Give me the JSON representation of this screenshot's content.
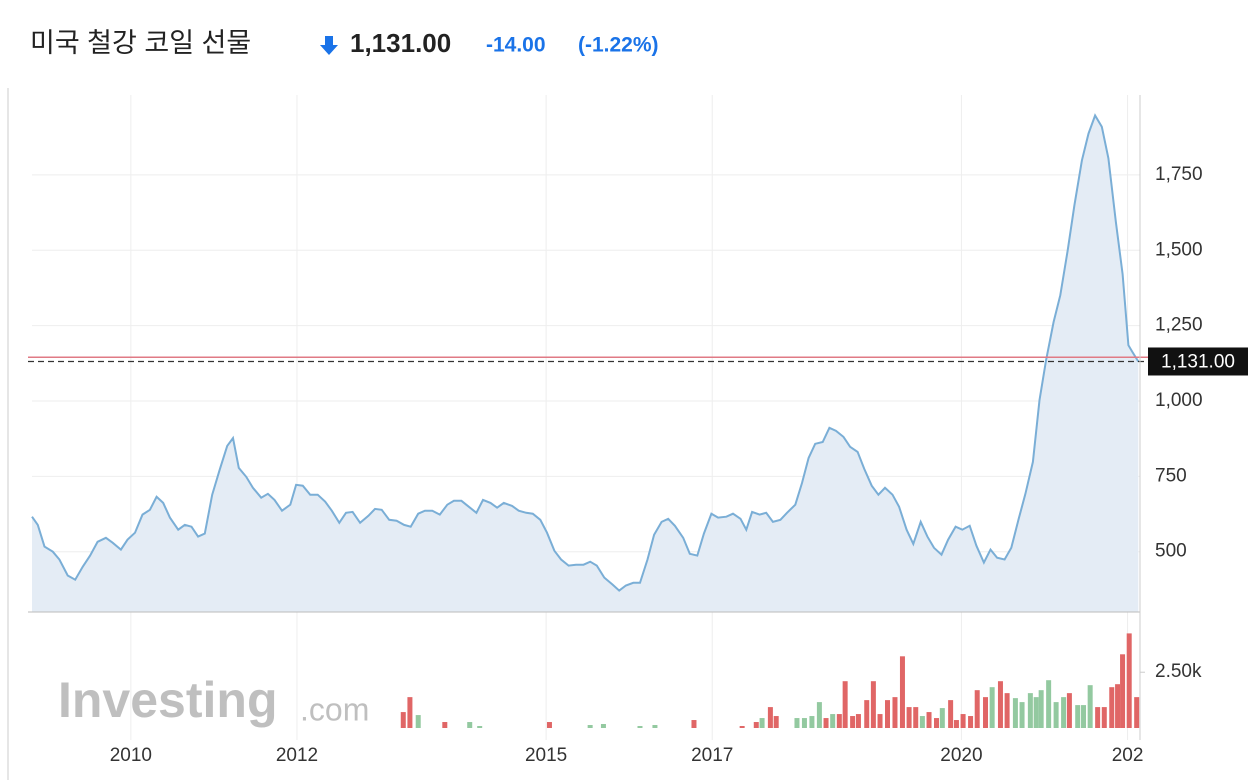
{
  "chart_data": {
    "type": "area",
    "title": "미국 철강 코일 선물",
    "price": "1,131.00",
    "change": "-14.00",
    "change_pct": "(-1.22%)",
    "watermark": {
      "brand": "Investing",
      "suffix": ".com"
    },
    "color": "#7aaed6",
    "fill": "#e4ecf5",
    "x": [
      2008.81,
      2008.88,
      2008.96,
      2009.06,
      2009.14,
      2009.24,
      2009.33,
      2009.42,
      2009.51,
      2009.6,
      2009.7,
      2009.78,
      2009.88,
      2009.96,
      2010.05,
      2010.14,
      2010.23,
      2010.31,
      2010.39,
      2010.47,
      2010.57,
      2010.65,
      2010.73,
      2010.81,
      2010.89,
      2010.98,
      2011.07,
      2011.16,
      2011.23,
      2011.3,
      2011.39,
      2011.47,
      2011.57,
      2011.65,
      2011.73,
      2011.82,
      2011.92,
      2011.99,
      2012.07,
      2012.16,
      2012.25,
      2012.34,
      2012.42,
      2012.51,
      2012.59,
      2012.67,
      2012.76,
      2012.86,
      2012.94,
      2013.02,
      2013.11,
      2013.2,
      2013.29,
      2013.37,
      2013.46,
      2013.54,
      2013.63,
      2013.72,
      2013.81,
      2013.89,
      2013.98,
      2014.07,
      2014.16,
      2014.24,
      2014.33,
      2014.41,
      2014.49,
      2014.59,
      2014.67,
      2014.76,
      2014.84,
      2014.93,
      2015.01,
      2015.1,
      2015.18,
      2015.27,
      2015.36,
      2015.45,
      2015.53,
      2015.61,
      2015.7,
      2015.8,
      2015.88,
      2015.96,
      2016.05,
      2016.13,
      2016.22,
      2016.3,
      2016.39,
      2016.47,
      2016.55,
      2016.65,
      2016.73,
      2016.82,
      2016.9,
      2016.99,
      2017.07,
      2017.17,
      2017.25,
      2017.34,
      2017.41,
      2017.48,
      2017.57,
      2017.65,
      2017.73,
      2017.82,
      2017.9,
      2018.0,
      2018.08,
      2018.16,
      2018.24,
      2018.33,
      2018.41,
      2018.49,
      2018.58,
      2018.66,
      2018.75,
      2018.83,
      2018.92,
      2019.0,
      2019.08,
      2019.17,
      2019.25,
      2019.34,
      2019.42,
      2019.51,
      2019.59,
      2019.67,
      2019.76,
      2019.84,
      2019.93,
      2020.01,
      2020.1,
      2020.18,
      2020.27,
      2020.35,
      2020.43,
      2020.52,
      2020.6,
      2020.69,
      2020.77,
      2020.86,
      2020.94,
      2021.02,
      2021.11,
      2021.19,
      2021.28,
      2021.36,
      2021.45,
      2021.53,
      2021.61,
      2021.69,
      2021.77,
      2021.86,
      2021.94,
      2022.01,
      2022.06,
      2022.13
    ],
    "values": [
      616,
      589,
      517,
      500,
      474,
      421,
      407,
      450,
      487,
      533,
      546,
      530,
      507,
      540,
      563,
      623,
      639,
      682,
      662,
      613,
      573,
      589,
      583,
      550,
      560,
      689,
      772,
      851,
      877,
      778,
      748,
      712,
      679,
      692,
      672,
      636,
      656,
      722,
      719,
      689,
      689,
      666,
      636,
      596,
      629,
      632,
      596,
      619,
      642,
      639,
      606,
      603,
      589,
      583,
      626,
      636,
      636,
      623,
      656,
      669,
      669,
      649,
      629,
      672,
      662,
      646,
      662,
      652,
      636,
      629,
      626,
      606,
      563,
      503,
      474,
      454,
      457,
      457,
      467,
      454,
      414,
      391,
      371,
      388,
      397,
      397,
      474,
      556,
      599,
      609,
      586,
      546,
      493,
      487,
      560,
      626,
      613,
      616,
      626,
      609,
      573,
      632,
      623,
      629,
      599,
      606,
      629,
      656,
      728,
      811,
      858,
      864,
      911,
      901,
      881,
      848,
      831,
      775,
      719,
      689,
      712,
      689,
      649,
      573,
      526,
      599,
      550,
      513,
      490,
      540,
      583,
      573,
      586,
      520,
      464,
      507,
      480,
      474,
      513,
      609,
      692,
      798,
      1003,
      1136,
      1262,
      1351,
      1500,
      1649,
      1798,
      1887,
      1947,
      1910,
      1805,
      1593,
      1421,
      1185,
      1162,
      1131
    ],
    "xlim": [
      2008.81,
      2022.15
    ],
    "xticks": [
      2010,
      2012,
      2015,
      2017,
      2020,
      {
        "value": 2022,
        "label": "202"
      }
    ],
    "ylim": [
      300,
      2015
    ],
    "yticks": [
      500,
      {
        "value": 750,
        "label": "750"
      },
      {
        "value": 1000,
        "label": "1,000"
      },
      {
        "value": 1250,
        "label": "1,250"
      },
      {
        "value": 1500,
        "label": "1,500"
      },
      {
        "value": 1750,
        "label": "1,750"
      }
    ],
    "grid": true,
    "last_value": {
      "value": 1131,
      "label": "1,131.00"
    },
    "prev_close": {
      "value": 1145,
      "color": "#e07a85"
    },
    "volume": {
      "x": [
        2013.28,
        2013.36,
        2013.46,
        2013.78,
        2014.08,
        2014.2,
        2015.04,
        2015.53,
        2015.69,
        2016.13,
        2016.31,
        2016.78,
        2017.36,
        2017.53,
        2017.6,
        2017.7,
        2017.77,
        2018.02,
        2018.11,
        2018.2,
        2018.29,
        2018.37,
        2018.45,
        2018.53,
        2018.6,
        2018.69,
        2018.76,
        2018.86,
        2018.94,
        2019.02,
        2019.11,
        2019.2,
        2019.29,
        2019.37,
        2019.45,
        2019.53,
        2019.61,
        2019.7,
        2019.77,
        2019.87,
        2019.94,
        2020.02,
        2020.11,
        2020.19,
        2020.29,
        2020.37,
        2020.47,
        2020.55,
        2020.65,
        2020.73,
        2020.83,
        2020.9,
        2020.96,
        2021.05,
        2021.14,
        2021.23,
        2021.3,
        2021.4,
        2021.47,
        2021.55,
        2021.64,
        2021.72,
        2021.81,
        2021.88,
        2021.94,
        2022.02,
        2022.11
      ],
      "values": [
        714,
        1384,
        580,
        268,
        268,
        89,
        268,
        134,
        179,
        89,
        134,
        357,
        89,
        268,
        446,
        937,
        536,
        446,
        446,
        536,
        1161,
        446,
        625,
        625,
        2098,
        536,
        625,
        1250,
        2098,
        625,
        1250,
        1384,
        3214,
        937,
        937,
        536,
        714,
        446,
        893,
        1250,
        357,
        625,
        536,
        1696,
        1384,
        1830,
        2098,
        1563,
        1339,
        1161,
        1563,
        1384,
        1696,
        2143,
        1161,
        1384,
        1563,
        1027,
        1027,
        1920,
        937,
        937,
        1830,
        1964,
        3304,
        4241,
        1384
      ],
      "colors": [
        "#e06666",
        "#e06666",
        "#93c9a0",
        "#e06666",
        "#93c9a0",
        "#93c9a0",
        "#e06666",
        "#93c9a0",
        "#93c9a0",
        "#93c9a0",
        "#93c9a0",
        "#e06666",
        "#e06666",
        "#e06666",
        "#93c9a0",
        "#e06666",
        "#e06666",
        "#93c9a0",
        "#93c9a0",
        "#93c9a0",
        "#93c9a0",
        "#e06666",
        "#93c9a0",
        "#e06666",
        "#e06666",
        "#e06666",
        "#e06666",
        "#e06666",
        "#e06666",
        "#e06666",
        "#e06666",
        "#e06666",
        "#e06666",
        "#e06666",
        "#e06666",
        "#93c9a0",
        "#e06666",
        "#e06666",
        "#93c9a0",
        "#e06666",
        "#e06666",
        "#e06666",
        "#e06666",
        "#e06666",
        "#e06666",
        "#93c9a0",
        "#e06666",
        "#e06666",
        "#93c9a0",
        "#93c9a0",
        "#93c9a0",
        "#93c9a0",
        "#93c9a0",
        "#93c9a0",
        "#93c9a0",
        "#93c9a0",
        "#e06666",
        "#93c9a0",
        "#93c9a0",
        "#93c9a0",
        "#e06666",
        "#e06666",
        "#e06666",
        "#e06666",
        "#e06666",
        "#e06666",
        "#e06666"
      ],
      "ylim": [
        0,
        5200
      ],
      "yticks": [
        {
          "value": 2500,
          "label": "2.50k"
        }
      ]
    }
  }
}
